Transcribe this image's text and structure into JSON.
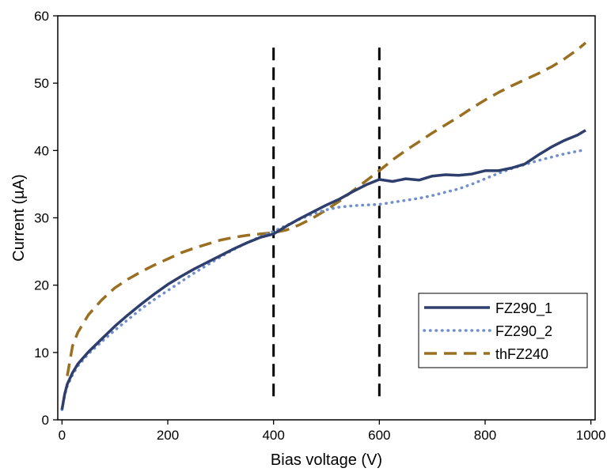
{
  "chart_data": {
    "type": "line",
    "title": "",
    "xlabel": "Bias voltage (V)",
    "ylabel": "Current (µA)",
    "xlim": [
      -8,
      1008
    ],
    "ylim": [
      0,
      60
    ],
    "x_ticks": [
      0,
      200,
      400,
      600,
      800,
      1000
    ],
    "y_ticks": [
      0,
      10,
      20,
      30,
      40,
      50,
      60
    ],
    "x_tick_labels": [
      "0",
      "200",
      "400",
      "600",
      "800",
      "1000"
    ],
    "y_tick_labels": [
      "0",
      "10",
      "20",
      "30",
      "40",
      "50",
      "60"
    ],
    "grid": false,
    "legend_position": "bottom-right",
    "vertical_markers": [
      {
        "x": 400,
        "y_range": [
          3.5,
          56
        ],
        "style": "dashed",
        "color": "#000000"
      },
      {
        "x": 600,
        "y_range": [
          3.5,
          56
        ],
        "style": "dashed",
        "color": "#000000"
      }
    ],
    "series": [
      {
        "name": "FZ290_1",
        "style": "solid",
        "color": "#2e3f6e",
        "x": [
          0,
          5,
          10,
          20,
          30,
          50,
          75,
          100,
          125,
          150,
          175,
          200,
          225,
          250,
          275,
          300,
          325,
          350,
          375,
          400,
          425,
          450,
          475,
          500,
          525,
          550,
          575,
          600,
          625,
          650,
          675,
          700,
          725,
          750,
          775,
          800,
          825,
          850,
          875,
          900,
          925,
          950,
          975,
          990
        ],
        "y": [
          1.5,
          3.8,
          5.3,
          7.0,
          8.3,
          10.1,
          12.0,
          13.9,
          15.6,
          17.2,
          18.7,
          20.1,
          21.3,
          22.4,
          23.4,
          24.4,
          25.4,
          26.3,
          27.1,
          27.6,
          28.8,
          29.9,
          30.9,
          31.9,
          32.8,
          33.9,
          34.9,
          35.7,
          35.4,
          35.8,
          35.6,
          36.2,
          36.4,
          36.3,
          36.5,
          37.0,
          37.0,
          37.4,
          38.0,
          39.3,
          40.5,
          41.5,
          42.3,
          43.0
        ]
      },
      {
        "name": "FZ290_2",
        "style": "dotted",
        "color": "#6f8fcc",
        "x": [
          0,
          5,
          10,
          20,
          30,
          50,
          75,
          100,
          125,
          150,
          175,
          200,
          225,
          250,
          275,
          300,
          325,
          350,
          375,
          400,
          425,
          450,
          475,
          500,
          525,
          550,
          575,
          600,
          625,
          650,
          675,
          700,
          725,
          750,
          775,
          800,
          825,
          850,
          875,
          900,
          925,
          950,
          975,
          990
        ],
        "y": [
          1.5,
          3.6,
          5.0,
          6.7,
          8.0,
          9.8,
          11.6,
          13.3,
          14.9,
          16.5,
          17.9,
          19.2,
          20.5,
          21.8,
          23.0,
          24.2,
          25.3,
          26.3,
          27.2,
          28.0,
          28.9,
          29.8,
          30.6,
          31.2,
          31.6,
          31.8,
          31.9,
          32.0,
          32.3,
          32.6,
          32.9,
          33.3,
          33.8,
          34.3,
          35.0,
          35.8,
          36.6,
          37.3,
          37.9,
          38.5,
          39.0,
          39.5,
          39.9,
          40.1
        ]
      },
      {
        "name": "thFZ240",
        "style": "dashed",
        "color": "#9a7020",
        "x": [
          10,
          20,
          30,
          50,
          75,
          100,
          125,
          150,
          175,
          200,
          225,
          250,
          275,
          300,
          325,
          350,
          375,
          400,
          425,
          450,
          475,
          500,
          525,
          550,
          575,
          600,
          625,
          650,
          675,
          700,
          725,
          750,
          775,
          800,
          825,
          850,
          875,
          900,
          925,
          950,
          975,
          990
        ],
        "y": [
          6.5,
          11.0,
          13.0,
          15.6,
          17.8,
          19.6,
          20.9,
          22.0,
          23.0,
          23.9,
          24.8,
          25.5,
          26.1,
          26.7,
          27.1,
          27.4,
          27.6,
          27.8,
          28.2,
          29.0,
          30.0,
          31.2,
          32.5,
          34.0,
          35.5,
          37.0,
          38.6,
          40.0,
          41.3,
          42.6,
          43.8,
          45.0,
          46.3,
          47.5,
          48.6,
          49.6,
          50.5,
          51.4,
          52.4,
          53.6,
          55.0,
          56.0
        ]
      }
    ]
  }
}
